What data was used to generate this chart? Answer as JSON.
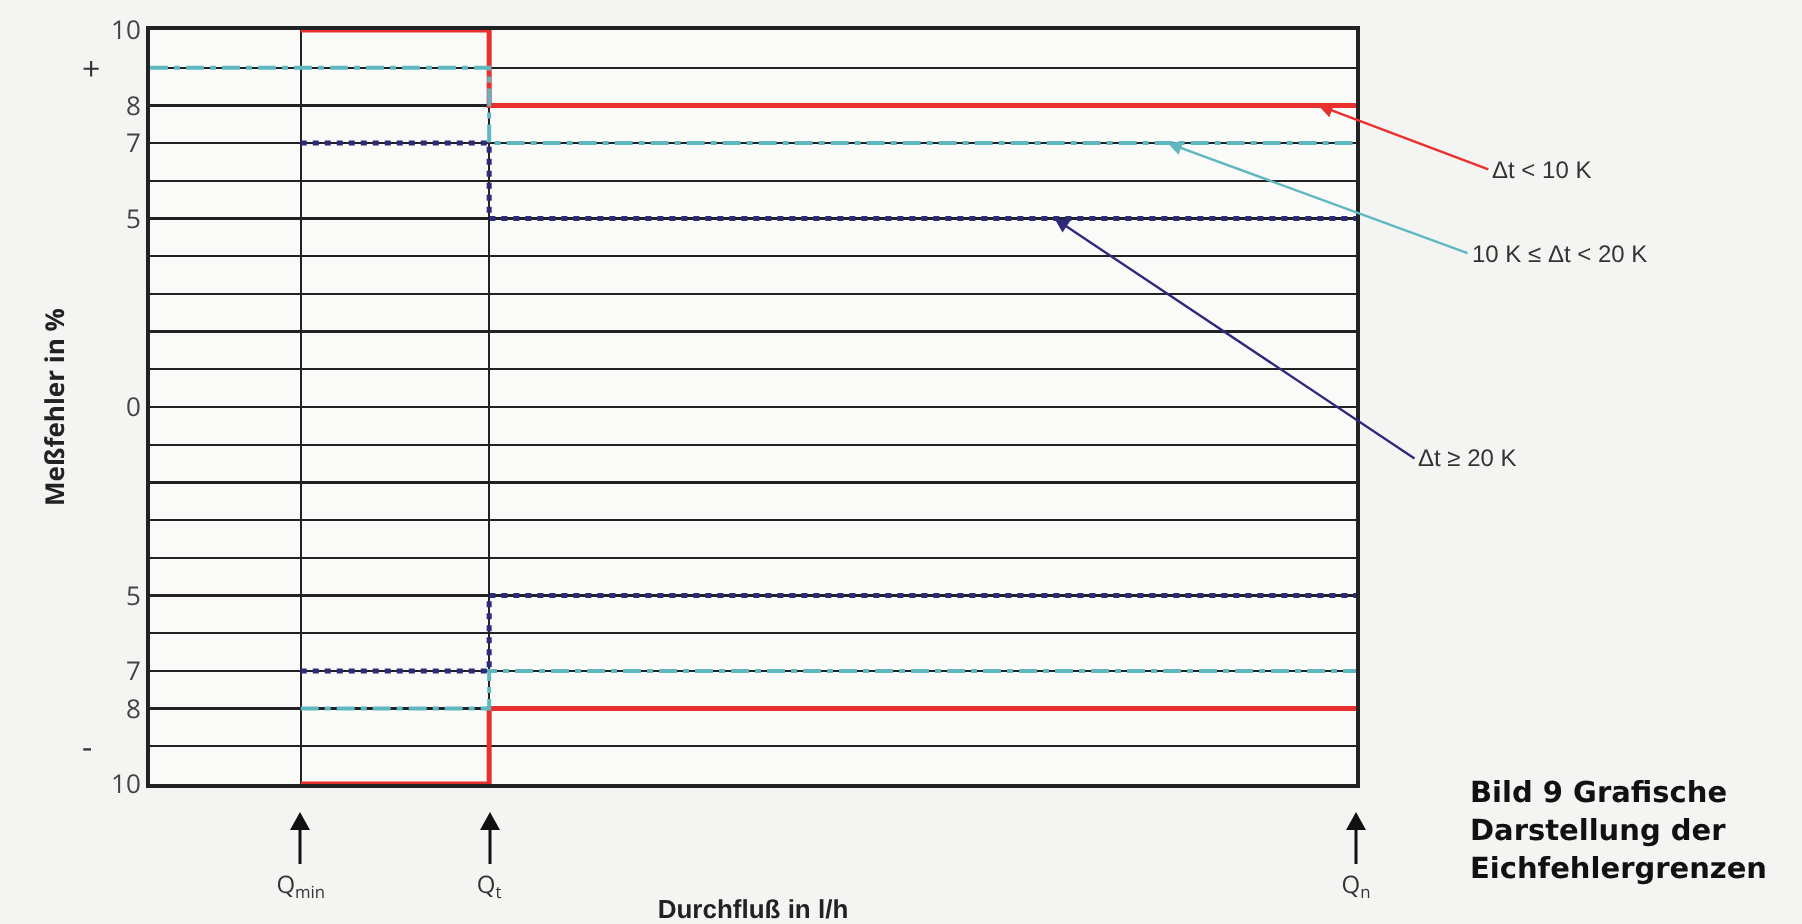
{
  "chart_data": {
    "type": "step",
    "xlabel": "Durchfluß in l/h",
    "ylabel": "Meßfehler in %",
    "categories": [
      null,
      null,
      null,
      null,
      "Q$_{min}$",
      null,
      null,
      null,
      null,
      "Q$_{t}$",
      null,
      null,
      null,
      null,
      null,
      null,
      null,
      null,
      null,
      null,
      null,
      null,
      null,
      null,
      null,
      null,
      null,
      null,
      null,
      null,
      null,
      null,
      "Q$_{n}$"
    ],
    "ylim": [
      -10,
      10
    ],
    "yticks": [
      {
        "value": -10,
        "label": "10"
      },
      {
        "value": -9,
        "label": null
      },
      {
        "value": -8,
        "label": "8"
      },
      {
        "value": -7,
        "label": "7"
      },
      {
        "value": -6,
        "label": null
      },
      {
        "value": -5,
        "label": "5"
      },
      {
        "value": -4,
        "label": null
      },
      {
        "value": -3,
        "label": null
      },
      {
        "value": -2,
        "label": null
      },
      {
        "value": -1,
        "label": null
      },
      0,
      {
        "value": 1,
        "label": null
      },
      {
        "value": 2,
        "label": null
      },
      {
        "value": 3,
        "label": null
      },
      {
        "value": 4,
        "label": null
      },
      5,
      {
        "value": 6,
        "label": null
      },
      7,
      8,
      {
        "value": 9,
        "label": null
      },
      10
    ],
    "grid": true,
    "marker": "none",
    "series": [
      {
        "name": "Δt < 10 K",
        "color": "#e8302f",
        "line_style": "solid",
        "values": [
          null,
          null,
          null,
          null,
          10,
          10,
          10,
          10,
          10,
          8,
          8,
          8,
          8,
          8,
          8,
          8,
          8,
          8,
          8,
          8,
          8,
          8,
          8,
          8,
          8,
          8,
          8,
          8,
          8,
          8,
          8,
          8,
          8
        ]
      },
      {
        "color": "#e8302f",
        "line_style": "solid",
        "values": [
          null,
          null,
          null,
          null,
          -10,
          -10,
          -10,
          -10,
          -10,
          -8,
          -8,
          -8,
          -8,
          -8,
          -8,
          -8,
          -8,
          -8,
          -8,
          -8,
          -8,
          -8,
          -8,
          -8,
          -8,
          -8,
          -8,
          -8,
          -8,
          -8,
          -8,
          -8,
          -8
        ]
      },
      {
        "name": "10 K ≤ Δt < 20 K",
        "color": "#5fb8c0",
        "line_style": "dashed",
        "values": [
          9,
          9,
          9,
          9,
          9,
          9,
          9,
          9,
          9,
          7,
          7,
          7,
          7,
          7,
          7,
          7,
          7,
          7,
          7,
          7,
          7,
          7,
          7,
          7,
          7,
          7,
          7,
          7,
          7,
          7,
          7,
          7,
          7
        ]
      },
      {
        "color": "#5fb8c0",
        "line_style": "dashed",
        "values": [
          null,
          null,
          null,
          null,
          -8,
          -8,
          -8,
          -8,
          -8,
          -7,
          -7,
          -7,
          -7,
          -7,
          -7,
          -7,
          -7,
          -7,
          -7,
          -7,
          -7,
          -7,
          -7,
          -7,
          -7,
          -7,
          -7,
          -7,
          -7,
          -7,
          -7,
          -7,
          -7
        ]
      },
      {
        "name": "Δt ≥ 20 K",
        "color": "#2e2a7a",
        "line_style": "dotted",
        "values": [
          null,
          null,
          null,
          null,
          7,
          7,
          7,
          7,
          7,
          5,
          5,
          5,
          5,
          5,
          5,
          5,
          5,
          5,
          5,
          5,
          5,
          5,
          5,
          5,
          5,
          5,
          5,
          5,
          5,
          5,
          5,
          5,
          5
        ]
      },
      {
        "color": "#2e2a7a",
        "line_style": "dotted",
        "values": [
          null,
          null,
          null,
          null,
          -7,
          -7,
          -7,
          -7,
          -7,
          -5,
          -5,
          -5,
          -5,
          -5,
          -5,
          -5,
          -5,
          -5,
          -5,
          -5,
          -5,
          -5,
          -5,
          -5,
          -5,
          -5,
          -5,
          -5,
          -5,
          -5,
          -5,
          -5,
          -5
        ]
      }
    ],
    "annotations": [
      "+",
      "-",
      "Bild 9  Grafische Darstellung der Eichfehlergrenzen"
    ]
  }
}
